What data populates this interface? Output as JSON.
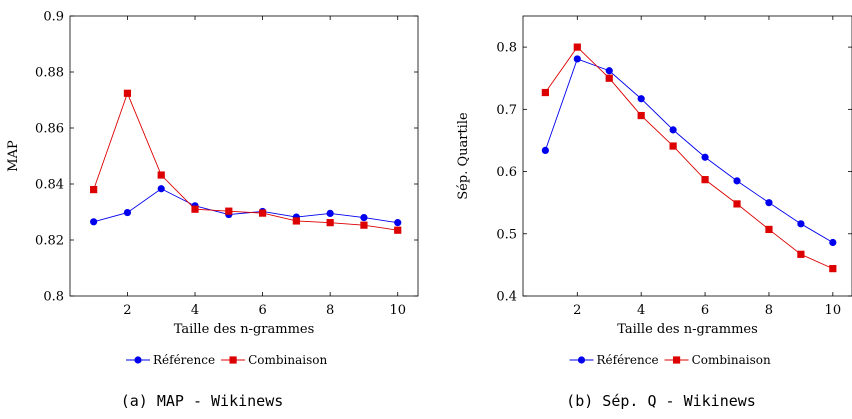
{
  "colors": {
    "reference": "#0000ee",
    "combinaison": "#dd0000",
    "axis": "#000000"
  },
  "chart_data": [
    {
      "type": "line",
      "caption": "(a) MAP - Wikinews",
      "xlabel": "Taille des n-grammes",
      "ylabel": "MAP",
      "xlim": [
        0.3,
        10.6
      ],
      "ylim": [
        0.8,
        0.9
      ],
      "xticks": [
        2,
        4,
        6,
        8,
        10
      ],
      "yticks": [
        0.8,
        0.82,
        0.84,
        0.86,
        0.88,
        0.9
      ],
      "ytick_labels": [
        "0.8",
        "0.82",
        "0.84",
        "0.86",
        "0.88",
        "0.9"
      ],
      "x": [
        1,
        2,
        3,
        4,
        5,
        6,
        7,
        8,
        9,
        10
      ],
      "series": [
        {
          "name": "Référence",
          "marker": "circle",
          "color": "#0000ee",
          "values": [
            0.8265,
            0.8298,
            0.8383,
            0.8322,
            0.8291,
            0.8302,
            0.8282,
            0.8295,
            0.828,
            0.8262
          ]
        },
        {
          "name": "Combinaison",
          "marker": "square",
          "color": "#dd0000",
          "values": [
            0.838,
            0.8724,
            0.8432,
            0.831,
            0.8303,
            0.8296,
            0.8268,
            0.8262,
            0.8253,
            0.8235
          ]
        }
      ],
      "legend": "bottom-center",
      "grid": false
    },
    {
      "type": "line",
      "caption": "(b) Sép. Q - Wikinews",
      "xlabel": "Taille des n-grammes",
      "ylabel": "Sép. Quartile",
      "xlim": [
        0.3,
        10.6
      ],
      "ylim": [
        0.4,
        0.85
      ],
      "xticks": [
        2,
        4,
        6,
        8,
        10
      ],
      "yticks": [
        0.4,
        0.5,
        0.6,
        0.7,
        0.8
      ],
      "ytick_labels": [
        "0.4",
        "0.5",
        "0.6",
        "0.7",
        "0.8"
      ],
      "x": [
        1,
        2,
        3,
        4,
        5,
        6,
        7,
        8,
        9,
        10
      ],
      "series": [
        {
          "name": "Référence",
          "marker": "circle",
          "color": "#0000ee",
          "values": [
            0.634,
            0.781,
            0.762,
            0.717,
            0.667,
            0.623,
            0.585,
            0.55,
            0.516,
            0.486
          ]
        },
        {
          "name": "Combinaison",
          "marker": "square",
          "color": "#dd0000",
          "values": [
            0.727,
            0.8,
            0.75,
            0.69,
            0.641,
            0.587,
            0.548,
            0.507,
            0.467,
            0.444
          ]
        }
      ],
      "legend": "bottom-center",
      "grid": false
    }
  ]
}
